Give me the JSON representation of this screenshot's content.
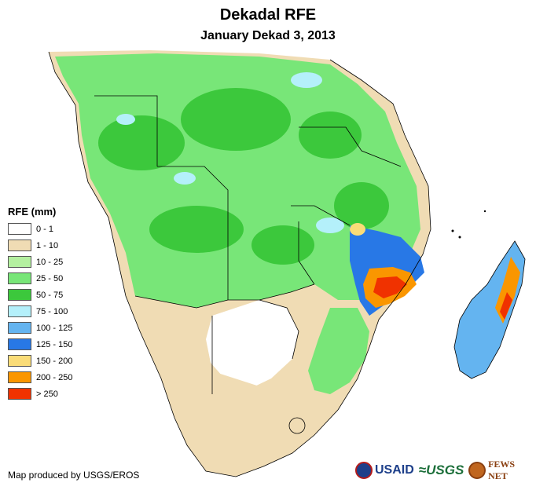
{
  "title": "Dekadal RFE",
  "subtitle": "January Dekad 3, 2013",
  "legend": {
    "title": "RFE (mm)",
    "items": [
      {
        "label": "0 - 1",
        "color": "#ffffff"
      },
      {
        "label": "1 - 10",
        "color": "#f0dcb4"
      },
      {
        "label": "10 - 25",
        "color": "#b4f0a0"
      },
      {
        "label": "25 - 50",
        "color": "#78e678"
      },
      {
        "label": "50 - 75",
        "color": "#3cc83c"
      },
      {
        "label": "75 - 100",
        "color": "#b4f0fa"
      },
      {
        "label": "100 - 125",
        "color": "#64b4f0"
      },
      {
        "label": "125 - 150",
        "color": "#2878e6"
      },
      {
        "label": "150 - 200",
        "color": "#fadc78"
      },
      {
        "label": "200 - 250",
        "color": "#fa9600"
      },
      {
        "label": "> 250",
        "color": "#f03200"
      }
    ]
  },
  "credit": "Map produced by USGS/EROS",
  "logos": {
    "usaid": "USAID",
    "usgs": "≈USGS",
    "fews": "FEWS NET"
  }
}
